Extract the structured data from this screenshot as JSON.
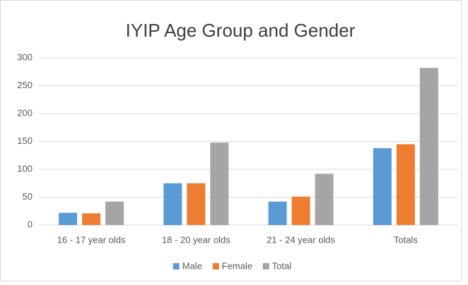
{
  "chart_data": {
    "type": "bar",
    "title": "IYIP Age Group and Gender",
    "categories": [
      "16 - 17 year olds",
      "18 - 20 year olds",
      "21 - 24 year olds",
      "Totals"
    ],
    "series": [
      {
        "name": "Male",
        "color": "#5b9bd5",
        "values": [
          22,
          75,
          42,
          138
        ]
      },
      {
        "name": "Female",
        "color": "#ed7d31",
        "values": [
          21,
          75,
          51,
          145
        ]
      },
      {
        "name": "Total",
        "color": "#a5a5a5",
        "values": [
          42,
          148,
          92,
          282
        ]
      }
    ],
    "ylim": [
      0,
      300
    ],
    "yticks": [
      0,
      50,
      100,
      150,
      200,
      250,
      300
    ],
    "grid": true,
    "legend": "bottom"
  }
}
